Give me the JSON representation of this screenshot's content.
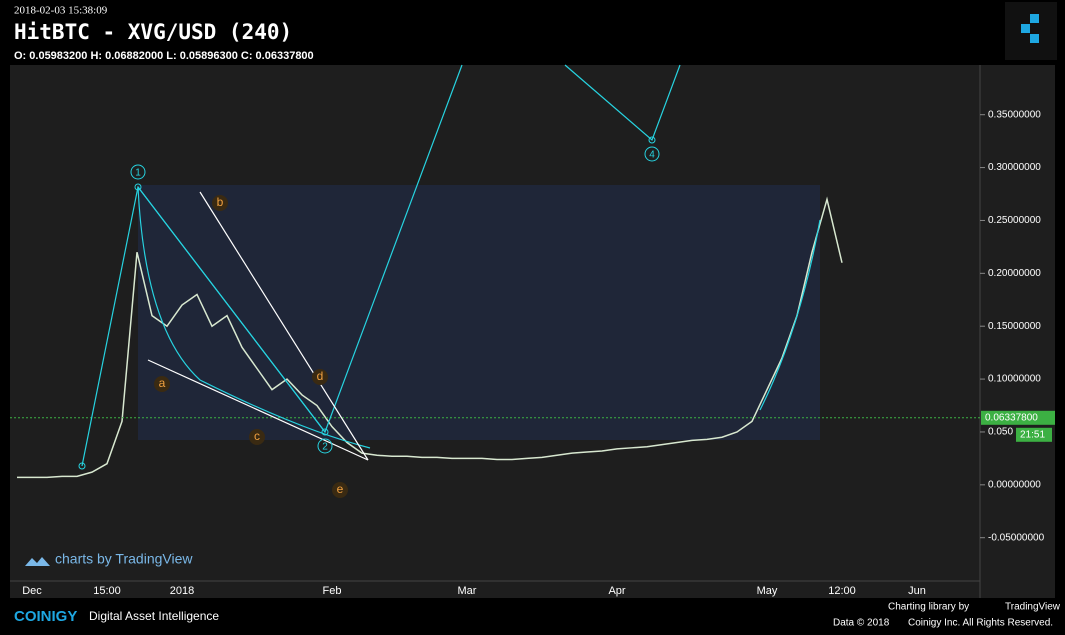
{
  "header": {
    "timestamp": "2018-02-03 15:38:09",
    "title": "HitBTC - XVG/USD (240)",
    "ohlc": "O: 0.05983200 H: 0.06882000 L: 0.05896300 C: 0.06337800"
  },
  "chart_data": {
    "type": "line",
    "categories": [
      null,
      "Dec",
      null,
      null,
      null,
      null,
      "15:00",
      null,
      null,
      null,
      null,
      "2018",
      null,
      null,
      null,
      null,
      null,
      null,
      null,
      null,
      null,
      "Feb",
      null,
      null,
      null,
      null,
      null,
      null,
      null,
      null,
      "Mar",
      null,
      null,
      null,
      null,
      null,
      null,
      null,
      null,
      null,
      "Apr",
      null,
      null,
      null,
      null,
      null,
      null,
      null,
      null,
      null,
      "May",
      null,
      null,
      null,
      null,
      "12:00",
      null,
      null,
      null,
      null,
      "Jun",
      null,
      null,
      null,
      null
    ],
    "series": [
      {
        "name": "XVG/USD",
        "color": "#d8e8d0",
        "values": [
          0.007,
          0.007,
          0.007,
          0.008,
          0.008,
          0.012,
          0.02,
          0.06,
          0.22,
          0.16,
          0.15,
          0.17,
          0.18,
          0.15,
          0.16,
          0.13,
          0.11,
          0.09,
          0.1,
          0.085,
          0.075,
          0.055,
          0.04,
          0.03,
          0.028,
          0.027,
          0.027,
          0.026,
          0.026,
          0.025,
          0.025,
          0.025,
          0.024,
          0.024,
          0.025,
          0.026,
          0.028,
          0.03,
          0.031,
          0.032,
          0.034,
          0.035,
          0.036,
          0.038,
          0.04,
          0.042,
          0.043,
          0.045,
          0.05,
          0.06,
          0.09,
          0.12,
          0.16,
          0.22,
          0.27,
          0.21,
          null,
          null,
          null,
          null,
          null,
          null,
          null,
          null,
          null
        ]
      }
    ],
    "ylim": [
      -0.09,
      0.397
    ],
    "yticks": [
      {
        "value": -0.05,
        "label": "-0.05000000"
      },
      {
        "value": 0,
        "label": "0.00000000"
      },
      {
        "value": 0.05,
        "label": "0.050"
      },
      {
        "value": 0.1,
        "label": "0.10000000"
      },
      {
        "value": 0.15,
        "label": "0.15000000"
      },
      {
        "value": 0.2,
        "label": "0.20000000"
      },
      {
        "value": 0.25,
        "label": "0.25000000"
      },
      {
        "value": 0.3,
        "label": "0.30000000"
      },
      {
        "value": 0.35,
        "label": "0.35000000"
      }
    ],
    "last_price": {
      "value": 0.063378,
      "label": "0.06337800"
    },
    "countdown": "21:51",
    "wave_labels": [
      "1",
      "2",
      "4"
    ],
    "abc_labels": [
      "a",
      "b",
      "c",
      "d",
      "e"
    ]
  },
  "footer": {
    "watermark": "charts by TradingView",
    "brand": "COINIGY",
    "tagline": "Digital Asset Intelligence",
    "charting": "Charting library by",
    "tv": "TradingView",
    "data": "Data © 2018",
    "rights": "Coinigy Inc. All Rights Reserved."
  }
}
